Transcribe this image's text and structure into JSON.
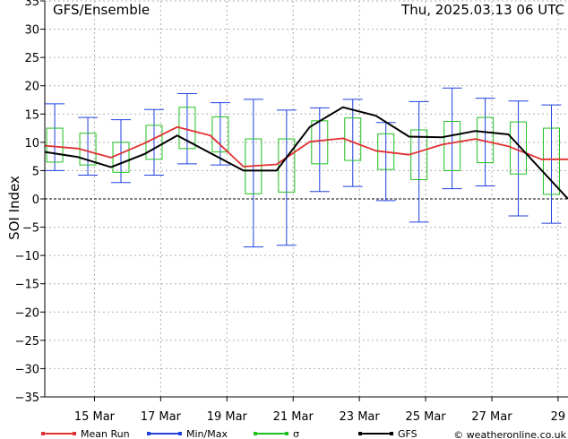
{
  "header": {
    "model": "GFS/Ensemble",
    "datetime": "Thu, 2025.03.13  06 UTC"
  },
  "copyright": "© weatheronline.co.uk",
  "colors": {
    "mean": "#e03030",
    "minmax": "#2040e0",
    "sigma": "#20c020",
    "gfs": "#000000",
    "grid": "#b0b0b0",
    "axis": "#000000"
  },
  "chart_data": {
    "type": "box-line",
    "ylabel": "SOI Index",
    "ylim": [
      -35,
      35
    ],
    "yticks": [
      -35,
      -30,
      -25,
      -20,
      -15,
      -10,
      -5,
      0,
      5,
      10,
      15,
      20,
      25,
      30,
      35
    ],
    "xlim": [
      13.5,
      29.3
    ],
    "xticks": [
      {
        "x": 15,
        "label": "15 Mar"
      },
      {
        "x": 17,
        "label": "17 Mar"
      },
      {
        "x": 19,
        "label": "19 Mar"
      },
      {
        "x": 21,
        "label": "21 Mar"
      },
      {
        "x": 23,
        "label": "23 Mar"
      },
      {
        "x": 25,
        "label": "25 Mar"
      },
      {
        "x": 27,
        "label": "27 Mar"
      },
      {
        "x": 29,
        "label": "29"
      }
    ],
    "grid": true,
    "boxes": [
      {
        "x": 13.8,
        "min": 5.0,
        "max": 16.8,
        "lo": 6.5,
        "hi": 12.5
      },
      {
        "x": 14.8,
        "min": 4.2,
        "max": 14.4,
        "lo": 6.0,
        "hi": 11.6
      },
      {
        "x": 15.8,
        "min": 2.9,
        "max": 14.0,
        "lo": 4.7,
        "hi": 10.0
      },
      {
        "x": 16.8,
        "min": 4.2,
        "max": 15.8,
        "lo": 7.0,
        "hi": 13.0
      },
      {
        "x": 17.8,
        "min": 6.2,
        "max": 18.6,
        "lo": 8.9,
        "hi": 16.2
      },
      {
        "x": 18.8,
        "min": 6.0,
        "max": 17.0,
        "lo": 8.3,
        "hi": 14.5
      },
      {
        "x": 19.8,
        "min": -8.5,
        "max": 17.6,
        "lo": 0.9,
        "hi": 10.6
      },
      {
        "x": 20.8,
        "min": -8.2,
        "max": 15.7,
        "lo": 1.2,
        "hi": 10.6
      },
      {
        "x": 21.8,
        "min": 1.3,
        "max": 16.1,
        "lo": 6.2,
        "hi": 13.8
      },
      {
        "x": 22.8,
        "min": 2.2,
        "max": 17.6,
        "lo": 6.8,
        "hi": 14.3
      },
      {
        "x": 23.8,
        "min": -0.3,
        "max": 13.5,
        "lo": 5.2,
        "hi": 11.5
      },
      {
        "x": 24.8,
        "min": -4.1,
        "max": 17.2,
        "lo": 3.4,
        "hi": 12.2
      },
      {
        "x": 25.8,
        "min": 1.8,
        "max": 19.6,
        "lo": 5.0,
        "hi": 13.7
      },
      {
        "x": 26.8,
        "min": 2.3,
        "max": 17.8,
        "lo": 6.4,
        "hi": 14.4
      },
      {
        "x": 27.8,
        "min": -3.0,
        "max": 17.3,
        "lo": 4.4,
        "hi": 13.6
      },
      {
        "x": 28.8,
        "min": -4.3,
        "max": 16.6,
        "lo": 0.8,
        "hi": 12.5
      }
    ],
    "series": [
      {
        "name": "Mean Run",
        "key": "mean",
        "x": [
          13.5,
          14.5,
          15.5,
          16.5,
          17.5,
          18.5,
          19.5,
          20.5,
          21.5,
          22.5,
          23.5,
          24.5,
          25.5,
          26.5,
          27.5,
          28.5,
          29.3
        ],
        "values": [
          9.4,
          8.9,
          7.3,
          9.8,
          12.7,
          11.2,
          5.7,
          6.1,
          10.1,
          10.7,
          8.5,
          7.8,
          9.6,
          10.6,
          9.3,
          7.0,
          7.0
        ]
      },
      {
        "name": "GFS",
        "key": "gfs",
        "x": [
          13.5,
          14.5,
          15.5,
          16.5,
          17.5,
          18.5,
          19.5,
          20.5,
          21.5,
          22.5,
          23.5,
          24.5,
          25.5,
          26.5,
          27.5,
          29.3
        ],
        "values": [
          8.3,
          7.4,
          5.6,
          7.9,
          11.2,
          8.1,
          5.0,
          5.0,
          12.7,
          16.2,
          14.7,
          11.0,
          10.9,
          12.0,
          11.4,
          0.0
        ]
      }
    ],
    "legend": [
      {
        "label": "Mean Run",
        "key": "mean"
      },
      {
        "label": "Min/Max",
        "key": "minmax"
      },
      {
        "label": "σ",
        "key": "sigma"
      },
      {
        "label": "GFS",
        "key": "gfs"
      }
    ],
    "legend_position": "bottom"
  }
}
